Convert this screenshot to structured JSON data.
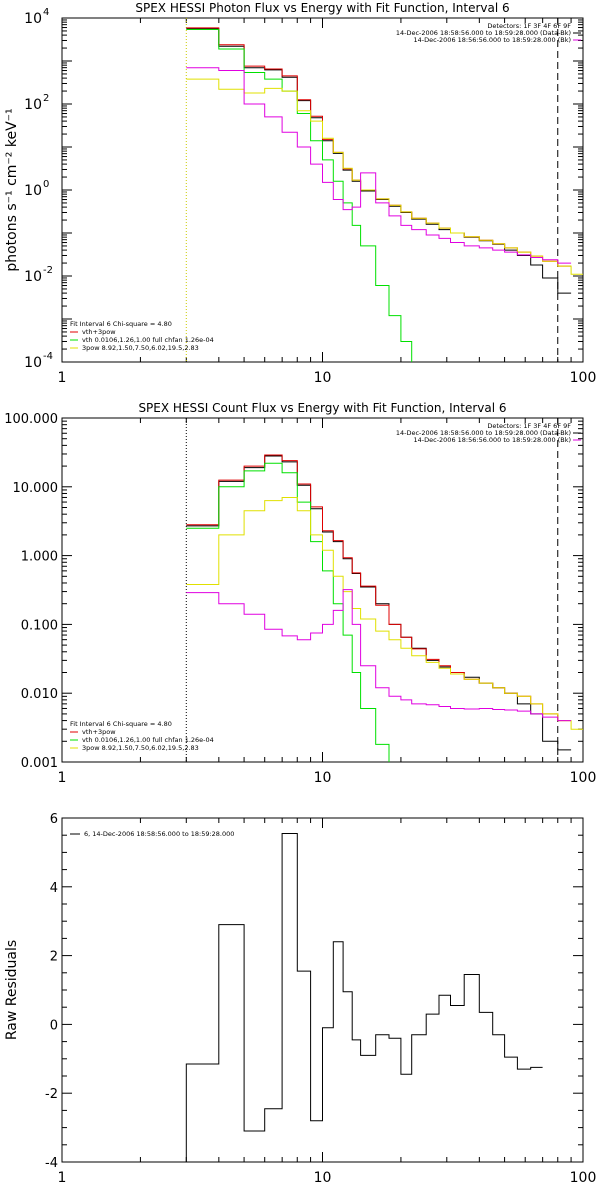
{
  "chart_data": [
    {
      "type": "line",
      "title": "SPEX HESSI Photon Flux vs Energy with Fit Function, Interval 6",
      "xlabel": "",
      "ylabel": "photons s⁻¹ cm⁻² keV⁻¹",
      "x_scale": "log",
      "y_scale": "log",
      "xlim": [
        1,
        100
      ],
      "ylim": [
        0.0001,
        10000
      ],
      "x_ticks": [
        1,
        10,
        100
      ],
      "x_tick_labels": [
        "1",
        "10",
        "100"
      ],
      "y_ticks": [
        0.0001,
        0.01,
        1,
        100,
        10000
      ],
      "y_tick_labels": [
        "10",
        "10",
        "10",
        "10",
        "10"
      ],
      "y_tick_exponents": [
        "-4",
        "-2",
        "0",
        "2",
        "4"
      ],
      "info_lines": [
        "Detectors: 1F 3F 4F 6F 9F",
        "14-Dec-2006 18:58:56.000 to 18:59:28.000 (Data-Bk)",
        "14-Dec-2006 18:56:56.000 to 18:59:28.000 (Bk)"
      ],
      "fit_lines": [
        "Fit Interval  6   Chi-square = 4.80",
        "vth+3pow",
        "vth 0.0106,1.26,1.00  full chfan 1.26e-04",
        "3pow  8.92,1.50,7.50,6.02,19.5,2.83"
      ],
      "vlines": [
        {
          "x": 3,
          "style": "dotted",
          "color": "#cccc00"
        },
        {
          "x": 80,
          "style": "dashed",
          "color": "#000000"
        }
      ],
      "bin_edges": [
        3,
        4,
        5,
        6,
        7,
        8,
        9,
        10,
        11,
        12,
        13,
        14,
        16,
        18,
        20,
        22,
        25,
        28,
        31,
        35,
        40,
        45,
        50,
        56,
        63,
        70,
        80,
        90,
        100
      ],
      "series": [
        {
          "name": "",
          "color": "#000000",
          "values": [
            5600,
            2200,
            700,
            620,
            420,
            120,
            48,
            14,
            7.1,
            2.9,
            1.6,
            0.95,
            0.6,
            0.42,
            0.3,
            0.21,
            0.16,
            0.12,
            0.1,
            0.08,
            0.066,
            0.055,
            0.04,
            0.03,
            0.018,
            0.009,
            0.004,
            null
          ]
        },
        {
          "name": "",
          "color": "#e00000",
          "values": [
            5900,
            2400,
            760,
            650,
            450,
            125,
            52,
            15,
            7.5,
            3.1,
            1.7,
            1.0,
            0.62,
            0.44,
            0.31,
            0.22,
            0.17,
            0.13,
            0.1,
            0.082,
            0.068,
            0.056,
            0.045,
            0.036,
            0.029,
            0.022,
            0.017,
            null
          ]
        },
        {
          "name": "",
          "color": "#00e000",
          "values": [
            5400,
            1900,
            540,
            380,
            200,
            60,
            14,
            5,
            1.6,
            0.5,
            0.15,
            0.05,
            0.006,
            0.0012,
            0.0003,
            6e-05,
            null,
            null,
            null,
            null,
            null,
            null,
            null,
            null,
            null,
            null,
            null,
            null
          ]
        },
        {
          "name": "",
          "color": "#e0e000",
          "values": [
            380,
            220,
            180,
            230,
            200,
            70,
            40,
            16,
            7.5,
            3.2,
            1.7,
            1.0,
            0.62,
            0.44,
            0.31,
            0.22,
            0.17,
            0.13,
            0.1,
            0.082,
            0.068,
            0.056,
            0.045,
            0.036,
            0.029,
            0.022,
            0.017,
            0.011
          ]
        },
        {
          "name": "",
          "color": "#e000e0",
          "values": [
            700,
            600,
            100,
            50,
            22,
            10,
            4,
            1.5,
            0.6,
            0.35,
            0.4,
            2.5,
            0.5,
            0.25,
            0.15,
            0.12,
            0.09,
            0.075,
            0.06,
            0.05,
            0.045,
            0.04,
            0.036,
            0.031,
            0.027,
            0.024,
            0.02,
            null
          ]
        }
      ]
    },
    {
      "type": "line",
      "title": "SPEX HESSI Count Flux vs Energy with Fit Function, Interval 6",
      "xlabel": "",
      "ylabel": "",
      "x_scale": "log",
      "y_scale": "log",
      "xlim": [
        1,
        100
      ],
      "ylim": [
        0.001,
        100
      ],
      "x_ticks": [
        1,
        10,
        100
      ],
      "x_tick_labels": [
        "1",
        "10",
        "100"
      ],
      "y_ticks": [
        0.001,
        0.01,
        0.1,
        1,
        10,
        100
      ],
      "y_tick_labels": [
        "0.001",
        "0.010",
        "0.100",
        "1.000",
        "10.000",
        "100.000"
      ],
      "info_lines": [
        "Detectors: 1F 3F 4F 6F 9F",
        "14-Dec-2006 18:58:56.000 to 18:59:28.000 (Data-Bk)",
        "14-Dec-2006 18:56:56.000 to 18:59:28.000 (Bk)"
      ],
      "fit_lines": [
        "Fit Interval  6   Chi-square = 4.80",
        "vth+3pow",
        "vth 0.0106,1.26,1.00  full chfan 1.26e-04",
        "3pow  8.92,1.50,7.50,6.02,19.5,2.83"
      ],
      "vlines": [
        {
          "x": 3,
          "style": "dotted",
          "color": "#000000"
        },
        {
          "x": 80,
          "style": "dashed",
          "color": "#000000"
        }
      ],
      "bin_edges": [
        3,
        4,
        5,
        6,
        7,
        8,
        9,
        10,
        11,
        12,
        13,
        14,
        16,
        18,
        20,
        22,
        25,
        28,
        31,
        35,
        40,
        45,
        50,
        56,
        63,
        70,
        80,
        90,
        100
      ],
      "series": [
        {
          "name": "",
          "color": "#000000",
          "values": [
            2.7,
            12,
            19,
            28,
            23,
            10.5,
            4.8,
            2.2,
            1.6,
            0.9,
            0.55,
            0.35,
            0.2,
            0.1,
            0.065,
            0.045,
            0.03,
            0.024,
            0.02,
            0.017,
            0.014,
            0.012,
            0.01,
            0.007,
            0.005,
            0.002,
            0.0015,
            null
          ]
        },
        {
          "name": "",
          "color": "#e00000",
          "values": [
            2.8,
            12.5,
            20,
            29,
            24,
            11,
            5.1,
            2.3,
            1.65,
            0.93,
            0.56,
            0.36,
            0.19,
            0.1,
            0.065,
            0.044,
            0.031,
            0.025,
            0.02,
            0.016,
            0.014,
            0.012,
            0.01,
            0.009,
            0.007,
            0.005,
            0.004,
            null
          ]
        },
        {
          "name": "",
          "color": "#00e000",
          "values": [
            2.5,
            10,
            17,
            22,
            16,
            6,
            1.6,
            0.6,
            0.2,
            0.07,
            0.02,
            0.006,
            0.0018,
            0.0006,
            null,
            null,
            null,
            null,
            null,
            null,
            null,
            null,
            null,
            null,
            null,
            null,
            null,
            null
          ]
        },
        {
          "name": "",
          "color": "#e0e000",
          "values": [
            0.38,
            2,
            4.5,
            6.3,
            7,
            4.5,
            2,
            1.2,
            0.5,
            0.3,
            0.17,
            0.12,
            0.08,
            0.06,
            0.045,
            0.035,
            0.028,
            0.023,
            0.019,
            0.016,
            0.014,
            0.012,
            0.01,
            0.009,
            0.007,
            0.005,
            0.004,
            0.003
          ]
        },
        {
          "name": "",
          "color": "#e000e0",
          "values": [
            0.29,
            0.2,
            0.14,
            0.085,
            0.068,
            0.06,
            0.075,
            0.1,
            0.16,
            0.32,
            0.1,
            0.025,
            0.012,
            0.009,
            0.008,
            0.007,
            0.0068,
            0.0064,
            0.006,
            0.0059,
            0.006,
            0.0058,
            0.0057,
            0.0055,
            0.005,
            0.0045,
            0.004,
            null
          ]
        }
      ]
    },
    {
      "type": "line",
      "title": "",
      "xlabel": "",
      "ylabel": "Raw Residuals",
      "x_scale": "log",
      "y_scale": "linear",
      "xlim": [
        1,
        100
      ],
      "ylim": [
        -4,
        6
      ],
      "x_ticks": [
        1,
        10,
        100
      ],
      "x_tick_labels": [
        "1",
        "10",
        "100"
      ],
      "y_ticks": [
        -4,
        -2,
        0,
        2,
        4,
        6
      ],
      "y_tick_labels": [
        "-4",
        "-2",
        "0",
        "2",
        "4",
        "6"
      ],
      "legend_lines": [
        "6, 14-Dec-2006 18:58:56.000 to 18:59:28.000"
      ],
      "drop_to_min_at_start": true,
      "bin_edges": [
        3,
        4,
        5,
        6,
        7,
        8,
        9,
        10,
        11,
        12,
        13,
        14,
        16,
        18,
        20,
        22,
        25,
        28,
        31,
        35,
        40,
        45,
        50,
        56,
        63,
        70,
        80,
        90,
        100
      ],
      "series": [
        {
          "name": "",
          "color": "#000000",
          "values": [
            -1.15,
            2.9,
            -3.1,
            -2.45,
            5.55,
            1.55,
            -2.8,
            -0.1,
            2.4,
            0.95,
            -0.45,
            -0.9,
            -0.3,
            -0.4,
            -1.45,
            -0.3,
            0.3,
            0.85,
            0.55,
            1.45,
            0.35,
            -0.3,
            -0.95,
            -1.3,
            -1.25,
            null,
            null,
            null
          ]
        }
      ]
    }
  ]
}
